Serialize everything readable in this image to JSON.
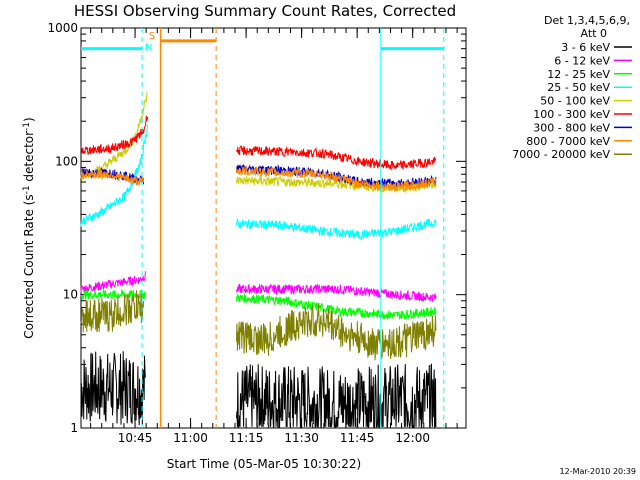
{
  "chart_data": {
    "type": "line",
    "title": "HESSI Observing Summary Count Rates, Corrected",
    "xlabel": "Start Time (05-Mar-05 10:30:22)",
    "ylabel_main": "Corrected Count Rate (s",
    "ylabel_sup1": "-1",
    "ylabel_mid": " detector",
    "ylabel_sup2": "-1",
    "ylabel_end": ")",
    "yscale": "log",
    "ylim": [
      1,
      1000
    ],
    "xlim_minutes": [
      0,
      104
    ],
    "x_ticks": [
      {
        "min": 14.6,
        "label": "10:45"
      },
      {
        "min": 29.6,
        "label": "11:00"
      },
      {
        "min": 44.6,
        "label": "11:15"
      },
      {
        "min": 59.6,
        "label": "11:30"
      },
      {
        "min": 74.6,
        "label": "11:45"
      },
      {
        "min": 89.6,
        "label": "12:00"
      }
    ],
    "y_ticks": [
      {
        "value": 1,
        "label": "1"
      },
      {
        "value": 10,
        "label": "10"
      },
      {
        "value": 100,
        "label": "100"
      },
      {
        "value": 1000,
        "label": "1000"
      }
    ],
    "legend_header": [
      "Det 1,3,4,5,6,9,",
      "Att 0"
    ],
    "legend": [
      {
        "label": "3 - 6 keV",
        "color": "#000000"
      },
      {
        "label": "6 - 12 keV",
        "color": "#ff00ff"
      },
      {
        "label": "12 - 25 keV",
        "color": "#00ff00"
      },
      {
        "label": "25 - 50 keV",
        "color": "#00ffff"
      },
      {
        "label": "50 - 100 keV",
        "color": "#cccc00"
      },
      {
        "label": "100 - 300 keV",
        "color": "#ff0000"
      },
      {
        "label": "300 - 800 keV",
        "color": "#0000cc"
      },
      {
        "label": "800 - 7000 keV",
        "color": "#ff8800"
      },
      {
        "label": "7000 - 20000 keV",
        "color": "#808000"
      }
    ],
    "series": [
      {
        "name": "3 - 6 keV",
        "color": "#000000",
        "seg1": {
          "x": [
            0,
            8,
            16,
            17.5
          ],
          "y": [
            2.0,
            2.0,
            2.0,
            2.0
          ]
        },
        "seg2": {
          "x": [
            42,
            55,
            70,
            85,
            96
          ],
          "y": [
            1.6,
            1.6,
            1.5,
            1.6,
            1.6
          ]
        }
      },
      {
        "name": "6 - 12 keV",
        "color": "#ff00ff",
        "seg1": {
          "x": [
            0,
            8,
            16,
            17.5
          ],
          "y": [
            11,
            12,
            13,
            14
          ]
        },
        "seg2": {
          "x": [
            42,
            55,
            70,
            85,
            96
          ],
          "y": [
            11,
            11,
            11,
            10,
            9.5
          ]
        }
      },
      {
        "name": "12 - 25 keV",
        "color": "#00ff00",
        "seg1": {
          "x": [
            0,
            8,
            16,
            17.5
          ],
          "y": [
            10,
            10,
            10,
            10
          ]
        },
        "seg2": {
          "x": [
            42,
            55,
            70,
            85,
            96
          ],
          "y": [
            9.5,
            9,
            7.5,
            7,
            7.5
          ]
        }
      },
      {
        "name": "25 - 50 keV",
        "color": "#00ffff",
        "seg1": {
          "x": [
            0,
            6,
            12,
            16,
            18
          ],
          "y": [
            35,
            42,
            55,
            95,
            185
          ]
        },
        "seg2": {
          "x": [
            42,
            55,
            65,
            75,
            85,
            96
          ],
          "y": [
            34,
            33,
            30,
            28,
            30,
            35
          ]
        }
      },
      {
        "name": "50 - 100 keV",
        "color": "#cccc00",
        "seg1": {
          "x": [
            0,
            6,
            12,
            15,
            18
          ],
          "y": [
            75,
            90,
            120,
            160,
            320
          ]
        },
        "seg2": {
          "x": [
            42,
            55,
            70,
            85,
            96
          ],
          "y": [
            72,
            70,
            68,
            62,
            68
          ]
        }
      },
      {
        "name": "100 - 300 keV",
        "color": "#ff0000",
        "seg1": {
          "x": [
            0,
            8,
            14,
            17,
            18
          ],
          "y": [
            120,
            125,
            140,
            170,
            230
          ]
        },
        "seg2": {
          "x": [
            42,
            55,
            65,
            75,
            85,
            96
          ],
          "y": [
            120,
            118,
            115,
            100,
            92,
            100
          ]
        }
      },
      {
        "name": "300 - 800 keV",
        "color": "#0000cc",
        "seg1": {
          "x": [
            0,
            8,
            14,
            17
          ],
          "y": [
            82,
            82,
            75,
            72
          ]
        },
        "seg2": {
          "x": [
            42,
            55,
            65,
            75,
            85,
            96
          ],
          "y": [
            88,
            85,
            82,
            70,
            68,
            72
          ]
        }
      },
      {
        "name": "800 - 7000 keV",
        "color": "#ff8800",
        "seg1": {
          "x": [
            0,
            8,
            14,
            17
          ],
          "y": [
            80,
            80,
            72,
            70
          ]
        },
        "seg2": {
          "x": [
            42,
            55,
            65,
            75,
            85,
            96
          ],
          "y": [
            85,
            82,
            80,
            68,
            64,
            70
          ]
        }
      },
      {
        "name": "7000 - 20000 keV",
        "color": "#808000",
        "seg1": {
          "x": [
            0,
            8,
            14,
            17
          ],
          "y": [
            7,
            7,
            8,
            8
          ]
        },
        "seg2": {
          "x": [
            42,
            50,
            58,
            65,
            72,
            80,
            88,
            96
          ],
          "y": [
            5,
            4.5,
            6,
            6.5,
            5,
            4.2,
            4.5,
            5.5
          ]
        }
      }
    ],
    "markers": {
      "cyan_level_y": 700,
      "cyan_bars": [
        [
          0,
          16.5
        ],
        [
          81,
          98
        ]
      ],
      "cyan_solid_x": [
        81
      ],
      "cyan_dashed_x": [
        16.5,
        98
      ],
      "orange_bar": [
        21.5,
        36.5
      ],
      "orange_bar_y": 800,
      "orange_solid_x": [
        21.5
      ],
      "orange_dashed_x": [
        36.5
      ],
      "flag_s": {
        "text": "S",
        "x": 19.2,
        "y": 830,
        "color": "#ff8800"
      },
      "flag_n": {
        "text": "N",
        "x": 18.3,
        "y": 680,
        "color": "#00ffff"
      }
    },
    "timestamp": "12-Mar-2010 20:39"
  }
}
